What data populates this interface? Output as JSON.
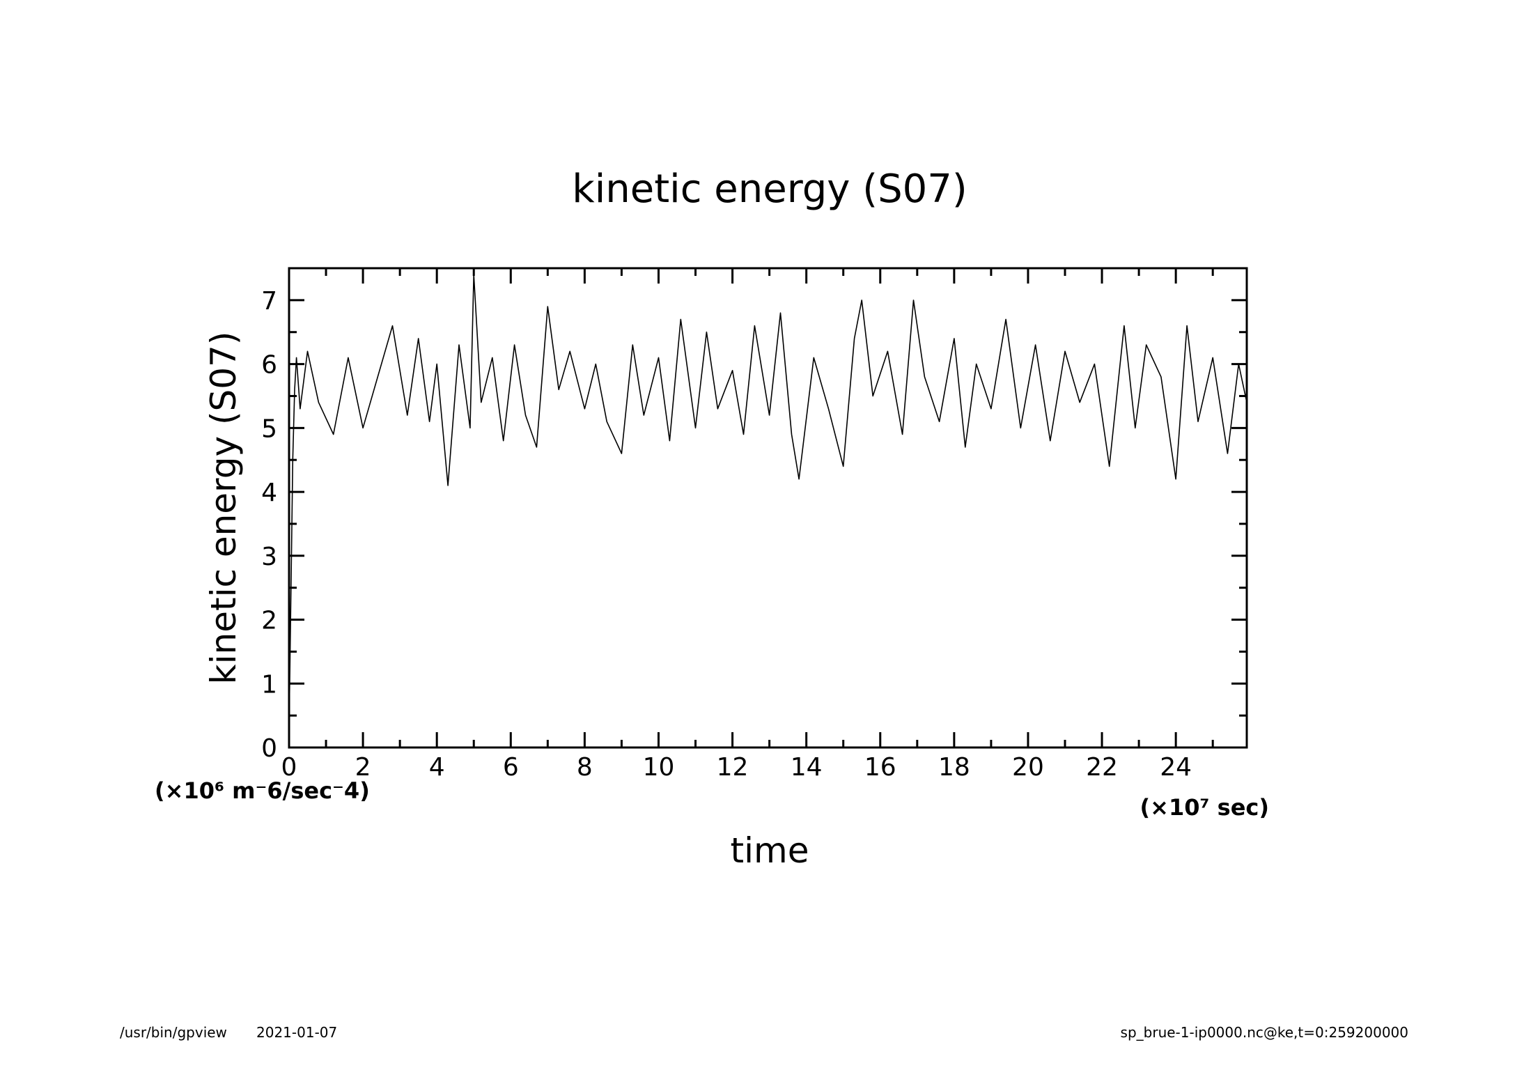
{
  "chart_data": {
    "type": "line",
    "title": "kinetic energy (S07)",
    "xlabel": "time",
    "ylabel": "kinetic energy (S07)",
    "x_unit": "(×10⁷ sec)",
    "y_unit": "(×10⁶ m⁻6/sec⁻4)",
    "xlim": [
      0,
      25.92
    ],
    "ylim": [
      0,
      7.5
    ],
    "x_ticks": [
      0,
      2,
      4,
      6,
      8,
      10,
      12,
      14,
      16,
      18,
      20,
      22,
      24
    ],
    "y_ticks": [
      0,
      1,
      2,
      3,
      4,
      5,
      6,
      7
    ],
    "grid": false,
    "series": [
      {
        "x": [
          0,
          0.05,
          0.1,
          0.15,
          0.2,
          0.3,
          0.5,
          0.8,
          1.2,
          1.6,
          2.0,
          2.4,
          2.8,
          3.2,
          3.5,
          3.8,
          4.0,
          4.3,
          4.6,
          4.9,
          5.0,
          5.2,
          5.5,
          5.8,
          6.1,
          6.4,
          6.7,
          7.0,
          7.3,
          7.6,
          8.0,
          8.3,
          8.6,
          9.0,
          9.3,
          9.6,
          10.0,
          10.3,
          10.6,
          11.0,
          11.3,
          11.6,
          12.0,
          12.3,
          12.6,
          13.0,
          13.3,
          13.6,
          13.8,
          14.2,
          14.6,
          15.0,
          15.3,
          15.5,
          15.8,
          16.2,
          16.6,
          16.9,
          17.2,
          17.6,
          18.0,
          18.3,
          18.6,
          19.0,
          19.4,
          19.8,
          20.2,
          20.6,
          21.0,
          21.4,
          21.8,
          22.2,
          22.6,
          22.9,
          23.2,
          23.6,
          24.0,
          24.3,
          24.6,
          25.0,
          25.4,
          25.7,
          25.92
        ],
        "y": [
          0.3,
          2.4,
          4.5,
          5.6,
          6.1,
          5.3,
          6.2,
          5.4,
          4.9,
          6.1,
          5.0,
          5.8,
          6.6,
          5.2,
          6.4,
          5.1,
          6.0,
          4.1,
          6.3,
          5.0,
          7.4,
          5.4,
          6.1,
          4.8,
          6.3,
          5.2,
          4.7,
          6.9,
          5.6,
          6.2,
          5.3,
          6.0,
          5.1,
          4.6,
          6.3,
          5.2,
          6.1,
          4.8,
          6.7,
          5.0,
          6.5,
          5.3,
          5.9,
          4.9,
          6.6,
          5.2,
          6.8,
          4.9,
          4.2,
          6.1,
          5.3,
          4.4,
          6.4,
          7.0,
          5.5,
          6.2,
          4.9,
          7.0,
          5.8,
          5.1,
          6.4,
          4.7,
          6.0,
          5.3,
          6.7,
          5.0,
          6.3,
          4.8,
          6.2,
          5.4,
          6.0,
          4.4,
          6.6,
          5.0,
          6.3,
          5.8,
          4.2,
          6.6,
          5.1,
          6.1,
          4.6,
          6.0,
          5.4
        ]
      }
    ]
  },
  "footer": {
    "left_path": "/usr/bin/gpview",
    "left_date": "2021-01-07",
    "right_info": "sp_brue-1-ip0000.nc@ke,t=0:259200000"
  }
}
